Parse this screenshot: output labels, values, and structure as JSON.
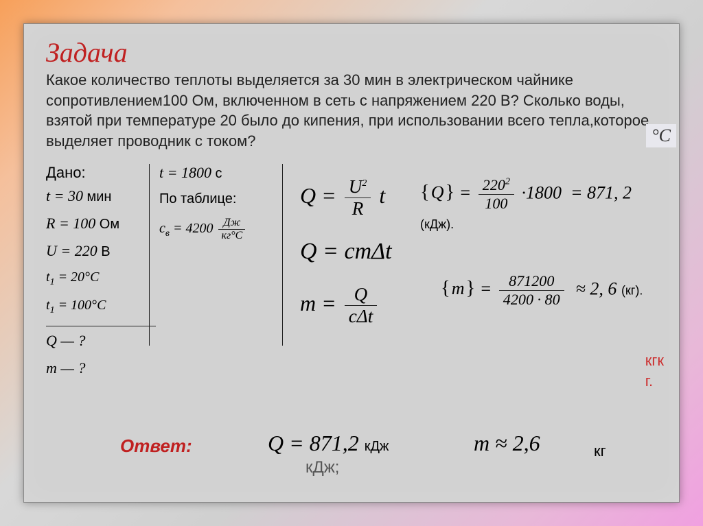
{
  "title": "Задача",
  "problem": "Какое количество теплоты выделяется за 30 мин в электрическом чайнике сопротивлением100 Ом, включенном в сеть с напряжением 220 В? Сколько воды, взятой при температуре 20  было до кипения,  при использовании  всего тепла,которое выделяет проводник с током?",
  "deg_c": "°C",
  "given": {
    "label": "Дано:",
    "t": "t = 30",
    "t_unit": "мин",
    "R": "R = 100",
    "R_unit": "Ом",
    "U": "U = 220",
    "U_unit": "В",
    "t1": "t₁ = 20°C",
    "t2": "t₁ = 100°C",
    "q_query": "Q — ?",
    "m_query": "m — ?"
  },
  "col2": {
    "t": "t = 1800",
    "t_unit": "c",
    "tab": "По таблице:",
    "c_label": "c",
    "c_sub": "в",
    "c_eq": "= 4200",
    "c_unit_num": "Дж",
    "c_unit_den": "кг°C"
  },
  "formulas": {
    "f1_lhs": "Q =",
    "f1_num": "U",
    "f1_sup": "2",
    "f1_den": "R",
    "f1_rhs": "t",
    "f2": "Q = cmΔt",
    "f3_lhs": "m =",
    "f3_num": "Q",
    "f3_den": "cΔt"
  },
  "calc1": {
    "lhs": "Q",
    "eq": "=",
    "num": "220",
    "num_sup": "2",
    "den": "100",
    "mult": "·1800",
    "res": "= 871, 2",
    "res_unit": "(кДж)."
  },
  "calc2": {
    "lhs": "m",
    "eq": "=",
    "num": "871200",
    "den": "4200 · 80",
    "res": "≈ 2, 6",
    "res_unit": "(кг)."
  },
  "stray_red": "кгк\nг.",
  "answer_label": "Ответ:",
  "ans_q": {
    "expr": "Q = 871,2",
    "unit": "кДж"
  },
  "stray_kdj": "кДж;",
  "ans_m": {
    "expr": "m ≈ 2,6"
  },
  "stray_kg": "кг",
  "colors": {
    "title": "#c02020",
    "text": "#222222",
    "panel": "#d2d2d2"
  }
}
